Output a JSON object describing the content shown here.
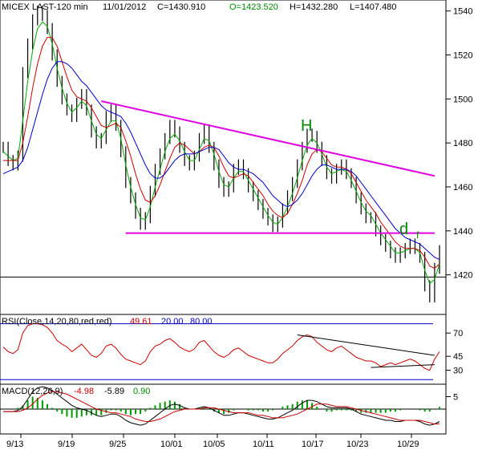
{
  "header": {
    "symbol": "MICEX LAST-120 min",
    "date": "11/01/2012",
    "close": "C=1430.910",
    "open": "O=1423.520",
    "high": "H=1432.280",
    "low": "L=1407.480"
  },
  "annotations": {
    "head": "H",
    "d": "d",
    "f": "f"
  },
  "colors": {
    "price": "#000000",
    "ma_fast": "#00aa00",
    "ma_mid": "#cc0000",
    "ma_slow": "#0000cc",
    "trendline": "#e000e0",
    "rsi": "#cc0000",
    "macd": "#000000",
    "signal": "#cc0000",
    "hist": "#009900",
    "level_line": "#0000cc",
    "head_text": "#008800",
    "open_text": "#008800"
  },
  "chart_data": [
    {
      "type": "line",
      "panel": "price",
      "ylim": [
        1402,
        1545
      ],
      "yticks": [
        "1540",
        "1520",
        "1500",
        "1480",
        "1460",
        "1440",
        "1420"
      ],
      "xticks": [
        "9/13",
        "9/19",
        "9/25",
        "10/01",
        "10/05",
        "10/11",
        "10/17",
        "10/23",
        "10/29"
      ],
      "horizontal_level": 1419,
      "series": [
        {
          "kind": "price",
          "values": [
            1478,
            1472,
            1470,
            1474,
            1512,
            1525,
            1536,
            1540,
            1538,
            1532,
            1520,
            1508,
            1500,
            1495,
            1492,
            1498,
            1502,
            1495,
            1485,
            1480,
            1482,
            1492,
            1495,
            1488,
            1476,
            1462,
            1455,
            1448,
            1443,
            1446,
            1458,
            1468,
            1475,
            1482,
            1488,
            1485,
            1478,
            1472,
            1470,
            1474,
            1482,
            1486,
            1478,
            1470,
            1462,
            1458,
            1460,
            1468,
            1470,
            1466,
            1460,
            1456,
            1452,
            1448,
            1445,
            1442,
            1444,
            1450,
            1456,
            1462,
            1470,
            1478,
            1484,
            1483,
            1478,
            1472,
            1466,
            1464,
            1468,
            1470,
            1466,
            1462,
            1455,
            1450,
            1446,
            1446,
            1440,
            1436,
            1433,
            1430,
            1428,
            1430,
            1432,
            1434,
            1432,
            1428,
            1415,
            1410,
            1423,
            1431
          ]
        },
        {
          "kind": "ma_fast",
          "values": [
            1476,
            1474,
            1472,
            1473,
            1490,
            1508,
            1522,
            1532,
            1535,
            1533,
            1525,
            1514,
            1505,
            1498,
            1494,
            1496,
            1499,
            1497,
            1490,
            1484,
            1482,
            1486,
            1490,
            1490,
            1482,
            1470,
            1460,
            1452,
            1446,
            1445,
            1451,
            1460,
            1468,
            1476,
            1482,
            1484,
            1481,
            1476,
            1472,
            1472,
            1477,
            1482,
            1481,
            1475,
            1467,
            1461,
            1460,
            1464,
            1467,
            1467,
            1463,
            1459,
            1455,
            1451,
            1447,
            1444,
            1443,
            1446,
            1451,
            1457,
            1464,
            1472,
            1479,
            1482,
            1480,
            1475,
            1469,
            1466,
            1467,
            1468,
            1467,
            1463,
            1458,
            1453,
            1449,
            1447,
            1443,
            1439,
            1436,
            1433,
            1430,
            1430,
            1431,
            1432,
            1432,
            1430,
            1422,
            1416,
            1418,
            1425
          ]
        },
        {
          "kind": "ma_mid",
          "values": [
            1472,
            1472,
            1472,
            1472,
            1480,
            1492,
            1505,
            1516,
            1524,
            1528,
            1528,
            1524,
            1517,
            1510,
            1504,
            1501,
            1500,
            1499,
            1496,
            1492,
            1488,
            1487,
            1488,
            1489,
            1487,
            1481,
            1474,
            1466,
            1459,
            1454,
            1453,
            1456,
            1461,
            1467,
            1473,
            1478,
            1480,
            1479,
            1477,
            1475,
            1476,
            1478,
            1479,
            1478,
            1474,
            1469,
            1465,
            1464,
            1465,
            1466,
            1465,
            1462,
            1459,
            1456,
            1452,
            1449,
            1447,
            1446,
            1448,
            1452,
            1457,
            1463,
            1470,
            1475,
            1477,
            1476,
            1473,
            1470,
            1469,
            1469,
            1468,
            1466,
            1462,
            1458,
            1454,
            1451,
            1448,
            1444,
            1441,
            1438,
            1435,
            1433,
            1432,
            1432,
            1432,
            1431,
            1428,
            1424,
            1423,
            1425
          ]
        },
        {
          "kind": "ma_slow",
          "values": [
            1466,
            1467,
            1468,
            1469,
            1472,
            1478,
            1486,
            1494,
            1502,
            1509,
            1514,
            1517,
            1517,
            1516,
            1514,
            1511,
            1508,
            1506,
            1503,
            1500,
            1497,
            1495,
            1494,
            1493,
            1492,
            1489,
            1485,
            1480,
            1475,
            1470,
            1466,
            1464,
            1464,
            1466,
            1469,
            1472,
            1474,
            1475,
            1475,
            1475,
            1476,
            1477,
            1478,
            1478,
            1477,
            1474,
            1471,
            1469,
            1468,
            1468,
            1467,
            1466,
            1464,
            1462,
            1459,
            1456,
            1454,
            1452,
            1451,
            1452,
            1454,
            1457,
            1461,
            1465,
            1468,
            1470,
            1470,
            1469,
            1468,
            1468,
            1468,
            1467,
            1465,
            1462,
            1459,
            1456,
            1453,
            1450,
            1447,
            1444,
            1441,
            1439,
            1437,
            1436,
            1435,
            1434,
            1432,
            1430,
            1428,
            1427
          ]
        }
      ],
      "trendlines": [
        {
          "x": [
            20,
            88
          ],
          "y": [
            1499,
            1465
          ]
        },
        {
          "x": [
            25,
            88
          ],
          "y": [
            1439,
            1439
          ]
        }
      ]
    },
    {
      "type": "line",
      "panel": "rsi",
      "title": "RSI(Close,14,20,80,red,red)",
      "last": "49.61",
      "lower": "20.00",
      "upper": "80.00",
      "ylim": [
        15,
        90
      ],
      "yticks": [
        "70",
        "45",
        "30"
      ],
      "levels": [
        80,
        20
      ],
      "values": [
        55,
        50,
        48,
        52,
        70,
        78,
        80,
        80,
        79,
        76,
        70,
        62,
        58,
        55,
        50,
        54,
        58,
        52,
        46,
        44,
        48,
        56,
        58,
        54,
        47,
        42,
        40,
        38,
        36,
        40,
        50,
        56,
        58,
        62,
        64,
        60,
        55,
        52,
        50,
        53,
        60,
        62,
        56,
        50,
        46,
        44,
        47,
        52,
        54,
        50,
        46,
        44,
        42,
        40,
        38,
        38,
        42,
        48,
        52,
        56,
        62,
        66,
        68,
        66,
        60,
        56,
        52,
        50,
        54,
        56,
        52,
        48,
        44,
        42,
        40,
        40,
        38,
        34,
        36,
        38,
        36,
        38,
        40,
        42,
        40,
        36,
        32,
        30,
        42,
        50
      ],
      "trendlines": [
        {
          "x": [
            60,
            88
          ],
          "y": [
            68,
            46
          ]
        },
        {
          "x": [
            75,
            88
          ],
          "y": [
            33,
            36
          ]
        }
      ]
    },
    {
      "type": "line",
      "panel": "macd",
      "title": "MACD(12,26,9)",
      "macd": "-4.98",
      "signal": "-5.89",
      "hist": "0.90",
      "ylim": [
        -10,
        10
      ],
      "yticks": [
        "5"
      ],
      "zero_level": 0,
      "series": [
        {
          "kind": "macd",
          "values": [
            -1,
            -1,
            -1,
            -0.5,
            1,
            4,
            7,
            8.5,
            9,
            8.5,
            7.5,
            6,
            4.5,
            3,
            1.5,
            0.5,
            0,
            -0.5,
            -1.5,
            -2.5,
            -3,
            -2.5,
            -2,
            -2,
            -3,
            -4.5,
            -5.5,
            -6,
            -6.5,
            -6,
            -4.5,
            -3,
            -1.5,
            0,
            1.5,
            2,
            1.5,
            0.5,
            0,
            0,
            0.5,
            1,
            0.5,
            -0.5,
            -1.5,
            -2.5,
            -2.5,
            -2,
            -1.5,
            -1.5,
            -2,
            -2.5,
            -3,
            -3.5,
            -4,
            -4,
            -3.5,
            -2.5,
            -1.5,
            -0.5,
            1,
            2.5,
            3.5,
            3.5,
            3,
            2,
            1,
            0.5,
            0.5,
            0.5,
            0.5,
            0,
            -1,
            -2,
            -2.5,
            -3,
            -3.5,
            -4,
            -4.5,
            -4.5,
            -5,
            -5,
            -4.5,
            -4.5,
            -4.5,
            -5,
            -6,
            -6.5,
            -6,
            -5
          ]
        },
        {
          "kind": "signal",
          "values": [
            -1,
            -1,
            -1,
            -1,
            -0.5,
            0.5,
            2,
            4,
            5.5,
            6.5,
            7,
            7,
            6.5,
            6,
            5,
            4,
            3,
            2,
            1,
            0,
            -0.5,
            -1,
            -1.5,
            -1.5,
            -2,
            -2.5,
            -3,
            -4,
            -4.5,
            -5,
            -5,
            -4.5,
            -4,
            -3,
            -2,
            -1,
            -0.5,
            0,
            0,
            0,
            0,
            0.5,
            0.5,
            0.5,
            0,
            -0.5,
            -1,
            -1.5,
            -1.5,
            -1.5,
            -1.5,
            -2,
            -2.5,
            -2.5,
            -3,
            -3.5,
            -3.5,
            -3.5,
            -3,
            -2.5,
            -2,
            -1,
            0,
            1,
            2,
            2,
            2,
            1.5,
            1,
            1,
            1,
            0.5,
            0,
            -0.5,
            -1,
            -1.5,
            -2,
            -2.5,
            -3,
            -3.5,
            -4,
            -4.5,
            -4.5,
            -4.5,
            -4.5,
            -4.5,
            -5,
            -5.5,
            -6,
            -5.9
          ]
        }
      ]
    }
  ]
}
